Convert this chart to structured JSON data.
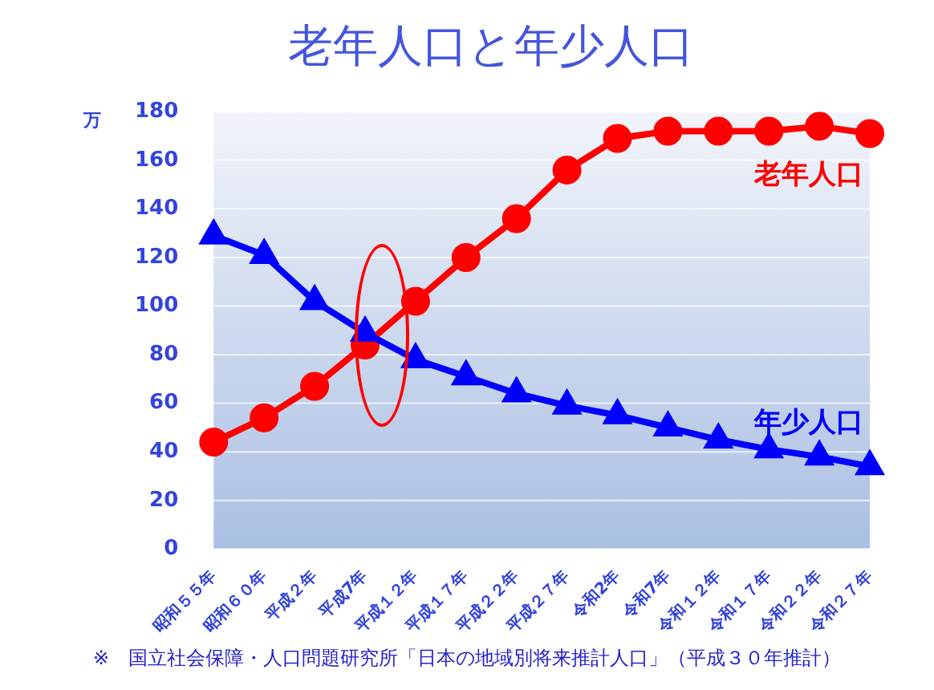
{
  "chart_data": {
    "type": "line",
    "title": "老年人口と年少人口",
    "ylabel": "万",
    "categories": [
      "昭和５５年",
      "昭和６０年",
      "平成２年",
      "平成7年",
      "平成１２年",
      "平成１７年",
      "平成２２年",
      "平成２７年",
      "令和2年",
      "令和7年",
      "令和１２年",
      "令和１７年",
      "令和２２年",
      "令和２７年"
    ],
    "series": [
      {
        "name": "老年人口",
        "color": "#ff0000",
        "marker": "circle",
        "values": [
          44,
          54,
          67,
          84,
          102,
          120,
          136,
          156,
          169,
          172,
          172,
          172,
          174,
          171
        ]
      },
      {
        "name": "年少人口",
        "color": "#0000ff",
        "marker": "triangle",
        "values": [
          129,
          121,
          102,
          89,
          78,
          71,
          64,
          59,
          55,
          50,
          45,
          41,
          38,
          34
        ]
      }
    ],
    "ylim": [
      0,
      180
    ],
    "yticks": [
      0,
      20,
      40,
      60,
      80,
      100,
      120,
      140,
      160,
      180
    ],
    "grid": "y",
    "legend": false,
    "annotations": [
      "※　国立社会保障・人口問題研究所「日本の地域別将来推計人口」（平成３０年推計）"
    ]
  }
}
